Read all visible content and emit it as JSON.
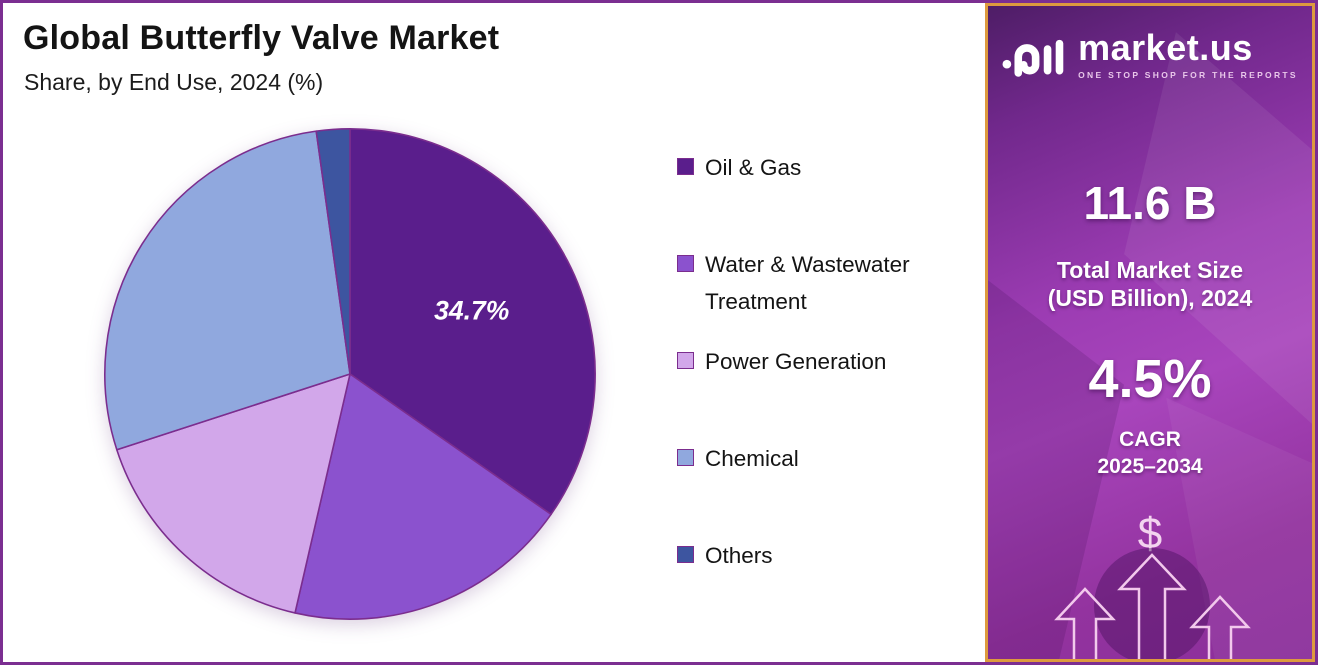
{
  "header": {
    "title": "Global Butterfly Valve Market",
    "subtitle": "Share, by End Use, 2024 (%)"
  },
  "chart_data": {
    "type": "pie",
    "title": "Global Butterfly Valve Market — Share, by End Use, 2024 (%)",
    "categories": [
      "Oil & Gas",
      "Water & Wastewater Treatment",
      "Power Generation",
      "Chemical",
      "Others"
    ],
    "values": [
      34.7,
      18.9,
      16.4,
      27.8,
      2.2
    ],
    "colors": [
      "#5a1e8c",
      "#8b52ce",
      "#d2a7ea",
      "#90a8de",
      "#3d55a0"
    ],
    "labeled_slice": {
      "index": 0,
      "text": "34.7%"
    },
    "start_angle_deg": 0,
    "direction": "clockwise",
    "legend_position": "right",
    "slice_border_color": "#7b2d8e"
  },
  "legend": {
    "items": [
      {
        "label": "Oil & Gas",
        "color": "#5a1e8c"
      },
      {
        "label": "Water & Wastewater Treatment",
        "color": "#8b52ce"
      },
      {
        "label": "Power Generation",
        "color": "#d2a7ea"
      },
      {
        "label": "Chemical",
        "color": "#90a8de"
      },
      {
        "label": "Others",
        "color": "#3d55a0"
      }
    ]
  },
  "sidebar": {
    "logo": {
      "brand": "market.us",
      "tagline": "ONE STOP SHOP FOR THE REPORTS"
    },
    "market_size": {
      "value": "11.6 B",
      "caption_line1": "Total Market Size",
      "caption_line2": "(USD Billion), 2024"
    },
    "cagr": {
      "value": "4.5%",
      "label_line1": "CAGR",
      "label_line2": "2025–2034"
    },
    "dollar_symbol": "$"
  }
}
